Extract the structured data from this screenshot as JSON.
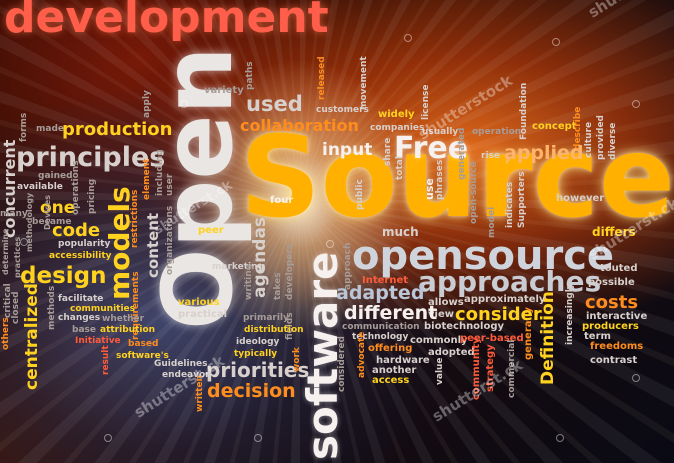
{
  "words": {
    "development": "development",
    "source": "Source",
    "open": "Open",
    "software": "software",
    "opensource": "opensource",
    "approaches": "approaches",
    "principles": "principles",
    "production": "production",
    "design": "design",
    "models": "models",
    "code": "code",
    "one": "one",
    "centralized": "centralized",
    "concurrent": "concurrent",
    "used": "used",
    "collaboration": "collaboration",
    "input": "input",
    "free": "Free",
    "applied": "applied",
    "adapted": "adapted",
    "different": "different",
    "consider": "consider",
    "costs": "costs",
    "definition": "Definition",
    "priorities": "priorities",
    "decision": "decision",
    "agendas": "agendas",
    "content": "content",
    "much": "much",
    "differs": "differs",
    "however": "however",
    "public": "public",
    "four": "four",
    "variety": "variety",
    "paths": "paths",
    "released": "released",
    "customers": "customers",
    "movement": "movement",
    "widely": "widely",
    "companies": "companies",
    "license": "license",
    "usually": "usually",
    "operation": "operation",
    "foundation": "Foundation",
    "concept": "concept",
    "describe": "describe",
    "culture": "culture",
    "provided": "provided",
    "diverse": "diverse",
    "share": "share",
    "total": "total",
    "use": "use",
    "phrases": "phrases",
    "generated": "generated",
    "rise": "rise",
    "indicates": "indicates",
    "supporters": "Supporters",
    "made": "made",
    "apply": "apply",
    "gained": "gained",
    "available": "available",
    "became": "became",
    "popularity": "popularity",
    "accessibility": "accessibility",
    "operations": "operations",
    "pricing": "pricing",
    "restrictions": "restrictions",
    "element": "element",
    "including": "including",
    "user": "user",
    "forms": "forms",
    "many": "many",
    "methodology": "methodology",
    "devices": "Devices",
    "peer": "peer",
    "organizations": "organizations",
    "marketing": "marketing",
    "writing": "writing",
    "takes": "takes",
    "developers": "developers",
    "fields": "fields",
    "primarily": "primarily",
    "distribution": "distribution",
    "ideology": "ideology",
    "typically": "typically",
    "work": "work",
    "approach": "approach",
    "internet": "Internet",
    "allows": "allows",
    "approximately": "approximately",
    "touted": "touted",
    "possible": "possible",
    "interactive": "interactive",
    "producers": "producers",
    "freedoms": "freedoms",
    "term": "term",
    "contrast": "contrast",
    "increasingly": "increasingly",
    "generally": "generally",
    "biotechnology": "biotechnology",
    "commonly": "commonly",
    "adopted": "adopted",
    "peer_based": "peer-based",
    "communication": "communication",
    "technology": "technology",
    "offering": "offering",
    "hardware": "hardware",
    "another": "another",
    "access": "access",
    "advocate": "advocate",
    "considered": "considered",
    "value": "value",
    "view": "view",
    "strategy": "strategy",
    "commercial": "commercial",
    "facilitate": "facilitate",
    "communities": "communities",
    "whether": "whether",
    "changes": "changes",
    "base": "base",
    "attribution": "attribution",
    "initiative": "Initiative",
    "based": "based",
    "softwares": "software's",
    "result": "result",
    "guidelines": "Guidelines",
    "endeavor": "endeavor",
    "various": "various",
    "practical": "practical",
    "written": "written",
    "others": "others",
    "critical": "critical",
    "closed": "closed",
    "methods": "methods",
    "practices": "practices",
    "determine": "determine",
    "requirements": "requirements",
    "community": "community",
    "open_source": "open-source",
    "model": "model"
  },
  "watermarks": [
    "shutterstock",
    "shutterst.ck",
    "shutterst.ck",
    "shutterst.ck",
    "shutterst.ck",
    "shutterst.ck"
  ],
  "colors": {
    "source_glow": "#ffb000",
    "title_red": "#ff5a3a",
    "accent_yellow": "#ffd21f",
    "orange": "#ff8d1e",
    "body_grey": "#d8d0cc"
  }
}
